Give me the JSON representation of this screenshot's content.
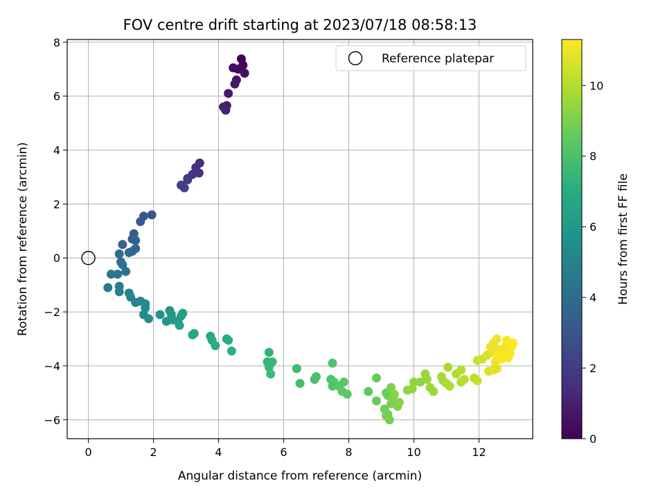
{
  "chart_data": {
    "type": "scatter",
    "title": "FOV centre drift starting at 2023/07/18 08:58:13",
    "xlabel": "Angular distance from reference (arcmin)",
    "ylabel": "Rotation from reference (arcmin)",
    "xlim": [
      -0.65,
      13.65
    ],
    "ylim": [
      -6.7,
      8.1
    ],
    "xticks": [
      0,
      2,
      4,
      6,
      8,
      10,
      12
    ],
    "yticks": [
      -6,
      -4,
      -2,
      0,
      2,
      4,
      6,
      8
    ],
    "grid": true,
    "legend": {
      "position": "top-right",
      "entries": [
        "Reference platepar"
      ]
    },
    "reference_point": {
      "x": 0,
      "y": 0
    },
    "colorbar": {
      "label": "Hours from first FF file",
      "range": [
        0,
        11.3
      ],
      "ticks": [
        0,
        2,
        4,
        6,
        8,
        10
      ],
      "colormap": "viridis"
    },
    "points": [
      [
        4.7,
        7.38,
        0.1
      ],
      [
        4.75,
        7.15,
        0.2
      ],
      [
        4.6,
        7.0,
        0.3
      ],
      [
        4.45,
        7.05,
        0.4
      ],
      [
        4.8,
        6.85,
        0.5
      ],
      [
        4.55,
        6.6,
        0.6
      ],
      [
        4.5,
        6.45,
        0.7
      ],
      [
        4.3,
        6.1,
        0.8
      ],
      [
        4.25,
        5.65,
        0.9
      ],
      [
        4.15,
        5.6,
        1.0
      ],
      [
        4.22,
        5.48,
        1.1
      ],
      [
        3.42,
        3.52,
        1.5
      ],
      [
        3.3,
        3.35,
        1.6
      ],
      [
        3.4,
        3.15,
        1.7
      ],
      [
        3.2,
        3.1,
        1.8
      ],
      [
        3.05,
        2.95,
        1.9
      ],
      [
        3.05,
        2.9,
        2.0
      ],
      [
        2.85,
        2.7,
        2.1
      ],
      [
        2.95,
        2.6,
        2.2
      ],
      [
        1.95,
        1.6,
        3.0
      ],
      [
        1.7,
        1.55,
        3.1
      ],
      [
        1.6,
        1.35,
        3.2
      ],
      [
        1.4,
        0.9,
        3.3
      ],
      [
        1.35,
        0.7,
        3.4
      ],
      [
        1.45,
        0.65,
        3.5
      ],
      [
        1.05,
        0.5,
        3.6
      ],
      [
        1.45,
        0.35,
        3.7
      ],
      [
        1.35,
        0.25,
        3.8
      ],
      [
        1.25,
        0.2,
        3.9
      ],
      [
        0.95,
        0.15,
        4.0
      ],
      [
        1.0,
        -0.15,
        4.1
      ],
      [
        1.05,
        -0.25,
        4.2
      ],
      [
        1.15,
        -0.5,
        4.3
      ],
      [
        0.9,
        -0.6,
        4.4
      ],
      [
        0.7,
        -0.6,
        4.5
      ],
      [
        0.6,
        -1.1,
        4.6
      ],
      [
        0.95,
        -1.05,
        4.7
      ],
      [
        0.95,
        -1.25,
        4.8
      ],
      [
        1.25,
        -1.3,
        4.9
      ],
      [
        1.3,
        -1.45,
        5.0
      ],
      [
        1.45,
        -1.65,
        5.1
      ],
      [
        1.6,
        -1.6,
        5.2
      ],
      [
        1.75,
        -1.7,
        5.3
      ],
      [
        1.75,
        -1.85,
        5.4
      ],
      [
        1.7,
        -2.1,
        5.5
      ],
      [
        1.85,
        -2.25,
        5.6
      ],
      [
        2.2,
        -2.1,
        5.7
      ],
      [
        2.4,
        -2.35,
        5.8
      ],
      [
        2.5,
        -1.95,
        5.9
      ],
      [
        2.55,
        -2.1,
        6.0
      ],
      [
        2.6,
        -2.3,
        6.1
      ],
      [
        2.75,
        -2.35,
        6.2
      ],
      [
        2.85,
        -2.15,
        6.3
      ],
      [
        2.9,
        -2.05,
        6.4
      ],
      [
        2.8,
        -2.5,
        6.5
      ],
      [
        3.25,
        -2.8,
        6.6
      ],
      [
        3.2,
        -2.85,
        6.7
      ],
      [
        3.75,
        -2.9,
        6.8
      ],
      [
        3.8,
        -3.05,
        6.9
      ],
      [
        3.9,
        -3.25,
        7.0
      ],
      [
        4.25,
        -3.0,
        7.0
      ],
      [
        4.3,
        -3.05,
        7.1
      ],
      [
        4.4,
        -3.45,
        7.2
      ],
      [
        5.55,
        -3.5,
        7.3
      ],
      [
        5.5,
        -3.85,
        7.4
      ],
      [
        5.65,
        -3.85,
        7.5
      ],
      [
        5.55,
        -4.05,
        7.5
      ],
      [
        5.6,
        -4.3,
        7.6
      ],
      [
        6.4,
        -4.1,
        7.7
      ],
      [
        6.5,
        -4.65,
        7.8
      ],
      [
        6.95,
        -4.5,
        7.9
      ],
      [
        7.0,
        -4.4,
        8.0
      ],
      [
        7.45,
        -4.5,
        8.1
      ],
      [
        7.5,
        -3.9,
        8.1
      ],
      [
        7.55,
        -4.6,
        8.2
      ],
      [
        7.5,
        -4.75,
        8.2
      ],
      [
        7.7,
        -4.75,
        8.3
      ],
      [
        7.85,
        -4.6,
        8.3
      ],
      [
        7.95,
        -5.05,
        8.4
      ],
      [
        7.8,
        -4.95,
        8.4
      ],
      [
        8.6,
        -4.95,
        8.5
      ],
      [
        8.85,
        -4.45,
        8.6
      ],
      [
        8.85,
        -5.3,
        8.6
      ],
      [
        9.15,
        -5.0,
        8.7
      ],
      [
        9.2,
        -5.1,
        8.7
      ],
      [
        9.1,
        -5.6,
        8.8
      ],
      [
        9.2,
        -5.8,
        8.8
      ],
      [
        9.25,
        -6.0,
        8.9
      ],
      [
        9.15,
        -5.85,
        8.9
      ],
      [
        9.3,
        -5.4,
        9.0
      ],
      [
        9.35,
        -5.2,
        9.0
      ],
      [
        9.3,
        -4.8,
        9.1
      ],
      [
        9.5,
        -5.5,
        9.1
      ],
      [
        9.55,
        -5.35,
        9.2
      ],
      [
        9.4,
        -5.05,
        9.2
      ],
      [
        9.8,
        -4.9,
        9.3
      ],
      [
        10.0,
        -4.6,
        9.3
      ],
      [
        9.95,
        -4.85,
        9.4
      ],
      [
        10.2,
        -4.6,
        9.4
      ],
      [
        10.4,
        -4.5,
        9.5
      ],
      [
        10.35,
        -4.3,
        9.5
      ],
      [
        10.5,
        -4.8,
        9.6
      ],
      [
        10.6,
        -4.95,
        9.6
      ],
      [
        10.85,
        -4.4,
        9.7
      ],
      [
        10.9,
        -4.55,
        9.7
      ],
      [
        11.0,
        -4.65,
        9.8
      ],
      [
        11.05,
        -4.05,
        9.8
      ],
      [
        11.1,
        -4.75,
        9.9
      ],
      [
        11.3,
        -4.3,
        9.9
      ],
      [
        11.45,
        -4.15,
        10.0
      ],
      [
        11.45,
        -4.6,
        10.0
      ],
      [
        11.55,
        -4.5,
        10.1
      ],
      [
        11.85,
        -4.45,
        10.2
      ],
      [
        11.95,
        -4.55,
        10.3
      ],
      [
        11.95,
        -3.8,
        10.4
      ],
      [
        12.1,
        -3.75,
        10.5
      ],
      [
        12.25,
        -3.6,
        10.6
      ],
      [
        12.3,
        -4.2,
        10.7
      ],
      [
        12.45,
        -4.15,
        10.8
      ],
      [
        12.55,
        -4.1,
        10.8
      ],
      [
        12.5,
        -3.85,
        10.9
      ],
      [
        12.4,
        -3.5,
        10.9
      ],
      [
        12.45,
        -3.15,
        11.0
      ],
      [
        12.35,
        -3.3,
        11.0
      ],
      [
        12.55,
        -3.0,
        11.0
      ],
      [
        12.6,
        -3.4,
        11.1
      ],
      [
        12.75,
        -3.6,
        11.1
      ],
      [
        12.8,
        -3.3,
        11.1
      ],
      [
        12.85,
        -3.05,
        11.2
      ],
      [
        12.95,
        -3.55,
        11.2
      ],
      [
        13.0,
        -3.3,
        11.2
      ],
      [
        13.05,
        -3.15,
        11.3
      ],
      [
        12.7,
        -3.75,
        11.3
      ],
      [
        12.9,
        -3.7,
        11.3
      ],
      [
        12.55,
        -3.65,
        11.25
      ]
    ]
  }
}
